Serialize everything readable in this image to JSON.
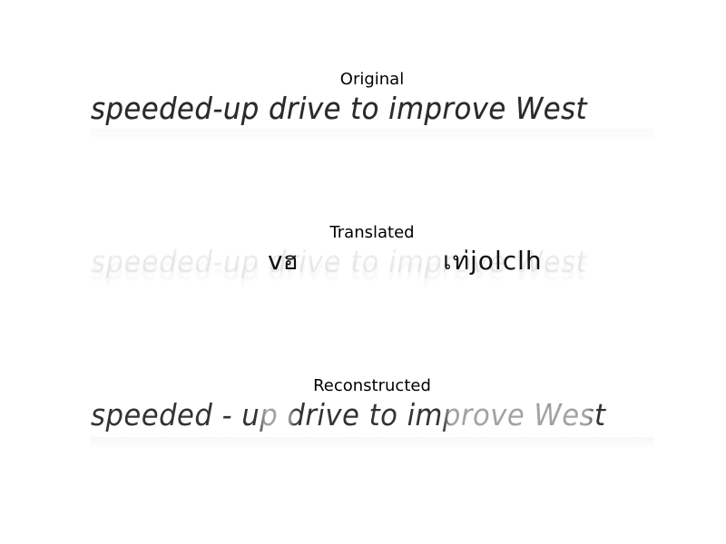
{
  "panels": {
    "original": {
      "title": "Original",
      "handwriting": "speeded-up drive to improve West"
    },
    "translated": {
      "title": "Translated",
      "handwriting_ghost": "speeded-up drive to improve West",
      "fragment_left": "vฮ",
      "fragment_right": "เท่jolclh"
    },
    "reconstructed": {
      "title": "Reconstructed",
      "handwriting": "speeded - up drive to improve West"
    }
  }
}
